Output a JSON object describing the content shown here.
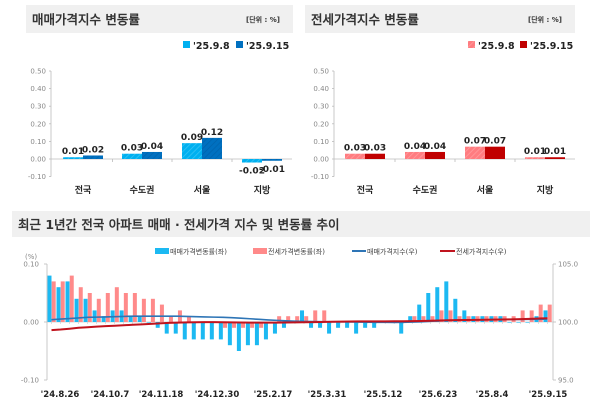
{
  "colors": {
    "sale_prev": "#00b0f0",
    "sale_curr": "#0070c0",
    "jeonse_prev": "#ff7c80",
    "jeonse_curr": "#c00000",
    "bar_sale": "#1cb9f2",
    "bar_jeonse": "#ff8a8a",
    "line_sale": "#2e75b6",
    "line_jeonse": "#c0141e"
  },
  "chart_data": [
    {
      "type": "bar",
      "title": "매매가격지수 변동률",
      "unit": "[단위 : %]",
      "categories": [
        "전국",
        "수도권",
        "서울",
        "지방"
      ],
      "series": [
        {
          "name": "'25.9.8",
          "values": [
            0.01,
            0.03,
            0.09,
            -0.02
          ]
        },
        {
          "name": "'25.9.15",
          "values": [
            0.02,
            0.04,
            0.12,
            -0.01
          ]
        }
      ],
      "ylim": [
        -0.1,
        0.5
      ],
      "yticks": [
        "0.50",
        "0.40",
        "0.30",
        "0.20",
        "0.10",
        "0.00",
        "-0.10"
      ],
      "data_labels": [
        [
          "0.01",
          "0.03",
          "0.09",
          "-0.02"
        ],
        [
          "0.02",
          "0.04",
          "0.12",
          "-0.01"
        ]
      ],
      "legend": "top-right"
    },
    {
      "type": "bar",
      "title": "전세가격지수 변동률",
      "unit": "[단위 : %]",
      "categories": [
        "전국",
        "수도권",
        "서울",
        "지방"
      ],
      "series": [
        {
          "name": "'25.9.8",
          "values": [
            0.03,
            0.04,
            0.07,
            0.01
          ]
        },
        {
          "name": "'25.9.15",
          "values": [
            0.03,
            0.04,
            0.07,
            0.01
          ]
        }
      ],
      "ylim": [
        -0.1,
        0.5
      ],
      "yticks": [
        "0.50",
        "0.40",
        "0.30",
        "0.20",
        "0.10",
        "0.00",
        "-0.10"
      ],
      "data_labels": [
        [
          "0.03",
          "0.04",
          "0.07",
          "0.01"
        ],
        [
          "0.03",
          "0.04",
          "0.07",
          "0.01"
        ]
      ],
      "legend": "top-right"
    },
    {
      "type": "bar+line",
      "title": "최근 1년간 전국 아파트 매매 · 전세가격 지수 및 변동률 추이",
      "left_unit": "(%)",
      "x_tick_labels": [
        "'24.8.26",
        "'24.10.7",
        "'24.11.18",
        "'24.12.30",
        "'25.2.17",
        "'25.3.31",
        "'25.5.12",
        "'25.6.23",
        "'25.8.4",
        "'25.9.15"
      ],
      "ylim_left": [
        -0.1,
        0.1
      ],
      "yticks_left": [
        "0.10",
        "0.00",
        "-0.10"
      ],
      "ylim_right": [
        95.0,
        105.0
      ],
      "yticks_right": [
        "105.0",
        "100.0",
        "95.0"
      ],
      "legend": "top",
      "series": [
        {
          "name": "매매가격변동률(좌)",
          "kind": "bar",
          "axis": "left",
          "values": [
            0.08,
            0.06,
            0.07,
            0.04,
            0.04,
            0.02,
            0.01,
            0.02,
            0.02,
            0.01,
            0.01,
            0.0,
            -0.01,
            -0.02,
            -0.02,
            -0.03,
            -0.03,
            -0.03,
            -0.03,
            -0.03,
            -0.04,
            -0.05,
            -0.04,
            -0.04,
            -0.03,
            -0.02,
            -0.01,
            0.0,
            0.02,
            -0.01,
            -0.01,
            -0.02,
            -0.01,
            -0.01,
            -0.02,
            -0.01,
            -0.01,
            0.0,
            0.0,
            -0.02,
            0.01,
            0.03,
            0.05,
            0.06,
            0.07,
            0.04,
            0.02,
            0.01,
            0.01,
            0.01,
            0.01,
            0.0,
            0.0,
            0.0,
            0.01,
            0.02
          ]
        },
        {
          "name": "전세가격변동률(좌)",
          "kind": "bar",
          "axis": "left",
          "values": [
            0.07,
            0.07,
            0.08,
            0.06,
            0.05,
            0.04,
            0.05,
            0.06,
            0.05,
            0.05,
            0.04,
            0.04,
            0.03,
            0.01,
            0.02,
            0.01,
            0.0,
            0.0,
            0.0,
            -0.01,
            -0.01,
            -0.01,
            -0.01,
            -0.01,
            0.0,
            0.01,
            0.01,
            0.01,
            0.01,
            0.02,
            0.02,
            0.0,
            0.0,
            0.0,
            0.0,
            0.0,
            0.0,
            0.0,
            0.0,
            0.0,
            0.01,
            0.01,
            0.01,
            0.02,
            0.02,
            0.01,
            0.01,
            0.01,
            0.01,
            0.01,
            0.01,
            0.01,
            0.02,
            0.02,
            0.03,
            0.03
          ]
        },
        {
          "name": "매매가격지수(우)",
          "kind": "line",
          "axis": "right",
          "values": [
            100.2,
            100.25,
            100.3,
            100.35,
            100.4,
            100.42,
            100.44,
            100.46,
            100.48,
            100.5,
            100.5,
            100.5,
            100.5,
            100.5,
            100.5,
            100.48,
            100.46,
            100.44,
            100.42,
            100.4,
            100.37,
            100.33,
            100.28,
            100.23,
            100.18,
            100.14,
            100.1,
            100.07,
            100.05,
            100.04,
            100.03,
            100.02,
            100.01,
            100.0,
            99.99,
            99.98,
            99.97,
            99.97,
            99.96,
            99.97,
            99.99,
            100.02,
            100.06,
            100.1,
            100.14,
            100.16,
            100.17,
            100.18,
            100.19,
            100.2,
            100.21,
            100.22,
            100.22,
            100.23,
            100.23,
            100.25
          ]
        },
        {
          "name": "전세가격지수(우)",
          "kind": "line",
          "axis": "right",
          "values": [
            99.3,
            99.35,
            99.42,
            99.5,
            99.55,
            99.6,
            99.64,
            99.68,
            99.72,
            99.76,
            99.8,
            99.84,
            99.88,
            99.92,
            99.95,
            99.97,
            99.98,
            99.99,
            99.99,
            99.98,
            99.97,
            99.96,
            99.95,
            99.95,
            99.95,
            99.95,
            99.96,
            99.97,
            99.98,
            99.99,
            100.0,
            100.02,
            100.03,
            100.04,
            100.05,
            100.05,
            100.05,
            100.05,
            100.06,
            100.07,
            100.08,
            100.09,
            100.11,
            100.13,
            100.15,
            100.16,
            100.17,
            100.18,
            100.19,
            100.2,
            100.21,
            100.23,
            100.25,
            100.27,
            100.3,
            100.32
          ]
        }
      ]
    }
  ]
}
